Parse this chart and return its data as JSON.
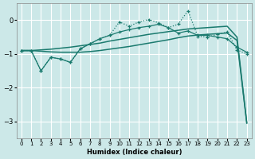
{
  "xlabel": "Humidex (Indice chaleur)",
  "background_color": "#cce8e8",
  "grid_color": "#ffffff",
  "line_color": "#1a7a6e",
  "xlim": [
    -0.5,
    23.5
  ],
  "ylim": [
    -3.5,
    0.5
  ],
  "xticks": [
    0,
    1,
    2,
    3,
    4,
    5,
    6,
    7,
    8,
    9,
    10,
    11,
    12,
    13,
    14,
    15,
    16,
    17,
    18,
    19,
    20,
    21,
    22,
    23
  ],
  "yticks": [
    0,
    -1,
    -2,
    -3
  ],
  "line_dotted_x": [
    0,
    1,
    2,
    3,
    4,
    5,
    6,
    7,
    8,
    9,
    10,
    11,
    12,
    13,
    14,
    15,
    16,
    17,
    18,
    19,
    20,
    21,
    22,
    23
  ],
  "line_dotted_y": [
    -0.9,
    -0.9,
    -1.5,
    -1.1,
    -1.15,
    -1.25,
    -0.85,
    -0.7,
    -0.55,
    -0.45,
    -0.05,
    -0.18,
    -0.05,
    0.02,
    -0.08,
    -0.22,
    -0.12,
    0.28,
    -0.48,
    -0.5,
    -0.42,
    -0.35,
    -0.88,
    -1.0
  ],
  "line_upper_x": [
    0,
    1,
    2,
    3,
    4,
    5,
    6,
    7,
    8,
    9,
    10,
    11,
    12,
    13,
    14,
    15,
    16,
    17,
    18,
    19,
    20,
    21,
    22,
    23
  ],
  "line_upper_y": [
    -0.9,
    -0.9,
    -0.88,
    -0.86,
    -0.83,
    -0.8,
    -0.76,
    -0.72,
    -0.68,
    -0.62,
    -0.57,
    -0.52,
    -0.47,
    -0.42,
    -0.38,
    -0.34,
    -0.3,
    -0.26,
    -0.24,
    -0.22,
    -0.2,
    -0.18,
    -0.5,
    -3.05
  ],
  "line_lower_x": [
    0,
    1,
    2,
    3,
    4,
    5,
    6,
    7,
    8,
    9,
    10,
    11,
    12,
    13,
    14,
    15,
    16,
    17,
    18,
    19,
    20,
    21,
    22,
    23
  ],
  "line_lower_y": [
    -0.9,
    -0.9,
    -0.92,
    -0.94,
    -0.95,
    -0.95,
    -0.95,
    -0.93,
    -0.9,
    -0.86,
    -0.82,
    -0.78,
    -0.73,
    -0.68,
    -0.63,
    -0.58,
    -0.52,
    -0.47,
    -0.44,
    -0.42,
    -0.4,
    -0.38,
    -0.6,
    -3.05
  ],
  "line_zigzag_x": [
    0,
    1,
    2,
    3,
    4,
    5,
    6,
    7,
    8,
    9,
    10,
    11,
    12,
    13,
    14,
    15,
    16,
    17,
    18,
    19,
    20,
    21,
    22,
    23
  ],
  "line_zigzag_y": [
    -0.9,
    -0.9,
    -1.5,
    -1.1,
    -1.15,
    -1.25,
    -0.85,
    -0.7,
    -0.55,
    -0.45,
    -0.35,
    -0.28,
    -0.22,
    -0.18,
    -0.12,
    -0.22,
    -0.38,
    -0.32,
    -0.45,
    -0.45,
    -0.5,
    -0.55,
    -0.8,
    -0.95
  ]
}
